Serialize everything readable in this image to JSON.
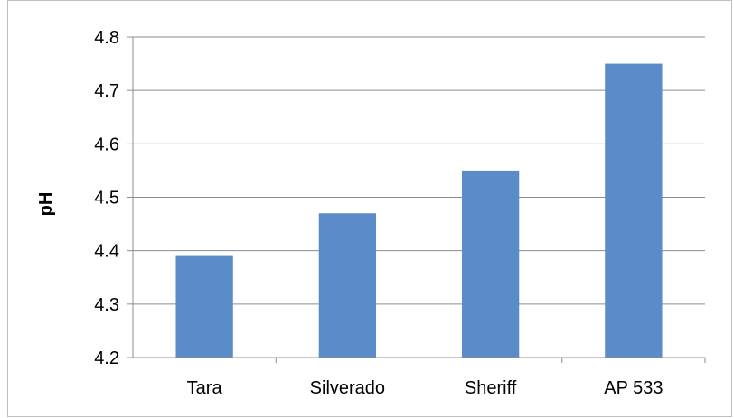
{
  "chart_data": {
    "type": "bar",
    "title": "",
    "xlabel": "",
    "ylabel": "pH",
    "categories": [
      "Tara",
      "Silverado",
      "Sheriff",
      "AP 533"
    ],
    "values": [
      4.39,
      4.47,
      4.55,
      4.75
    ],
    "ylim": [
      4.2,
      4.8
    ],
    "yticks": [
      "4.2",
      "4.3",
      "4.4",
      "4.5",
      "4.6",
      "4.7",
      "4.8"
    ],
    "grid": true,
    "legend": "none",
    "colors": {
      "bar": "#5b8bc9",
      "grid": "#8c8c8c",
      "axis": "#8c8c8c"
    }
  }
}
